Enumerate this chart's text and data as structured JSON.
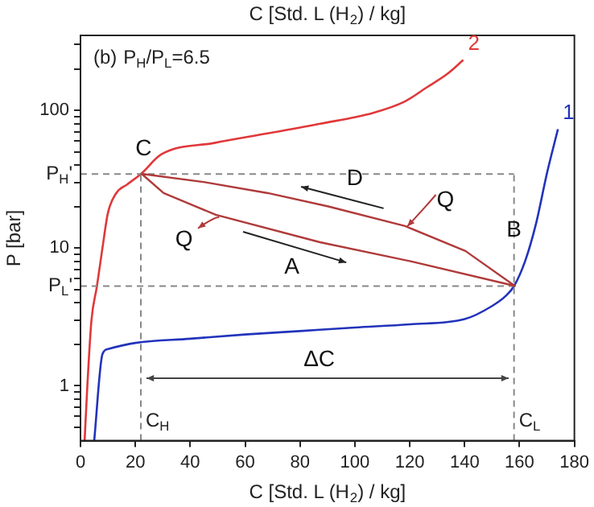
{
  "chart_data": {
    "type": "line",
    "xlabel": "C [Std. L (H$_{2}$) / kg]",
    "x2label": "C [Std. L (H$_{2}$) / kg]",
    "ylabel": "P [bar]",
    "xlim": [
      0,
      180
    ],
    "xticks": [
      0,
      20,
      40,
      60,
      80,
      100,
      120,
      140,
      160,
      180
    ],
    "ylim": [
      0.4,
      350
    ],
    "log": "y",
    "yticks": [
      {
        "value": 0.5,
        "label": null
      },
      {
        "value": 0.6,
        "label": null
      },
      {
        "value": 0.7,
        "label": null
      },
      {
        "value": 0.8,
        "label": null
      },
      {
        "value": 0.9,
        "label": null
      },
      1,
      {
        "value": 2,
        "label": null
      },
      {
        "value": 3,
        "label": null
      },
      {
        "value": 4,
        "label": null
      },
      {
        "value": 5,
        "label": null
      },
      {
        "value": 6,
        "label": null
      },
      {
        "value": 7,
        "label": null
      },
      {
        "value": 8,
        "label": null
      },
      {
        "value": 9,
        "label": null
      },
      10,
      {
        "value": 20,
        "label": null
      },
      {
        "value": 30,
        "label": null
      },
      {
        "value": 40,
        "label": null
      },
      {
        "value": 50,
        "label": null
      },
      {
        "value": 60,
        "label": null
      },
      {
        "value": 70,
        "label": null
      },
      {
        "value": 80,
        "label": null
      },
      {
        "value": 90,
        "label": null
      },
      100,
      {
        "value": 200,
        "label": null
      },
      {
        "value": 300,
        "label": null
      }
    ],
    "grid": false,
    "legend": false,
    "marker": "none",
    "line_style": "solid",
    "series": [
      {
        "name": "2",
        "color": "#e0383a",
        "x": [
          1.5,
          2.5,
          4,
          6,
          8,
          10,
          13,
          17,
          22,
          29.5,
          48.8,
          68.1,
          87.4,
          106.7,
          118.2,
          126,
          133.7,
          139.5
        ],
        "values": [
          0.4,
          1,
          3,
          5.3,
          10,
          18,
          25,
          29,
          34.5,
          48,
          58,
          68,
          80,
          96,
          116,
          146,
          184,
          232
        ]
      },
      {
        "name": "1",
        "color": "#2233bb",
        "x": [
          5,
          8,
          10,
          20,
          40,
          60,
          80,
          100,
          120,
          140,
          150,
          155,
          158,
          162,
          166,
          170,
          174
        ],
        "values": [
          0.4,
          1.7,
          1.85,
          2.05,
          2.2,
          2.36,
          2.5,
          2.65,
          2.8,
          3.05,
          3.8,
          4.5,
          5.3,
          8,
          15,
          35,
          73
        ]
      }
    ],
    "ref_lines": [
      {
        "axis": "y",
        "value": 34.5,
        "label": "P$_{H}$'",
        "color": "#888888",
        "line_style": "dashed"
      },
      {
        "axis": "y",
        "value": 5.3,
        "label": "P$_{L}$'",
        "color": "#888888",
        "line_style": "dashed"
      },
      {
        "axis": "x",
        "value": 22,
        "label": "C$_{H}$",
        "color": "#888888",
        "line_style": "dashed"
      },
      {
        "axis": "x",
        "value": 158,
        "label": "C$_{L}$",
        "color": "#888888",
        "line_style": "dashed"
      }
    ],
    "annotations": [
      "(b)",
      "P$_{H}$/P$_{L}$=6.5",
      "C",
      "B",
      "D",
      "A",
      "Q",
      "Q",
      "ΔC"
    ]
  }
}
